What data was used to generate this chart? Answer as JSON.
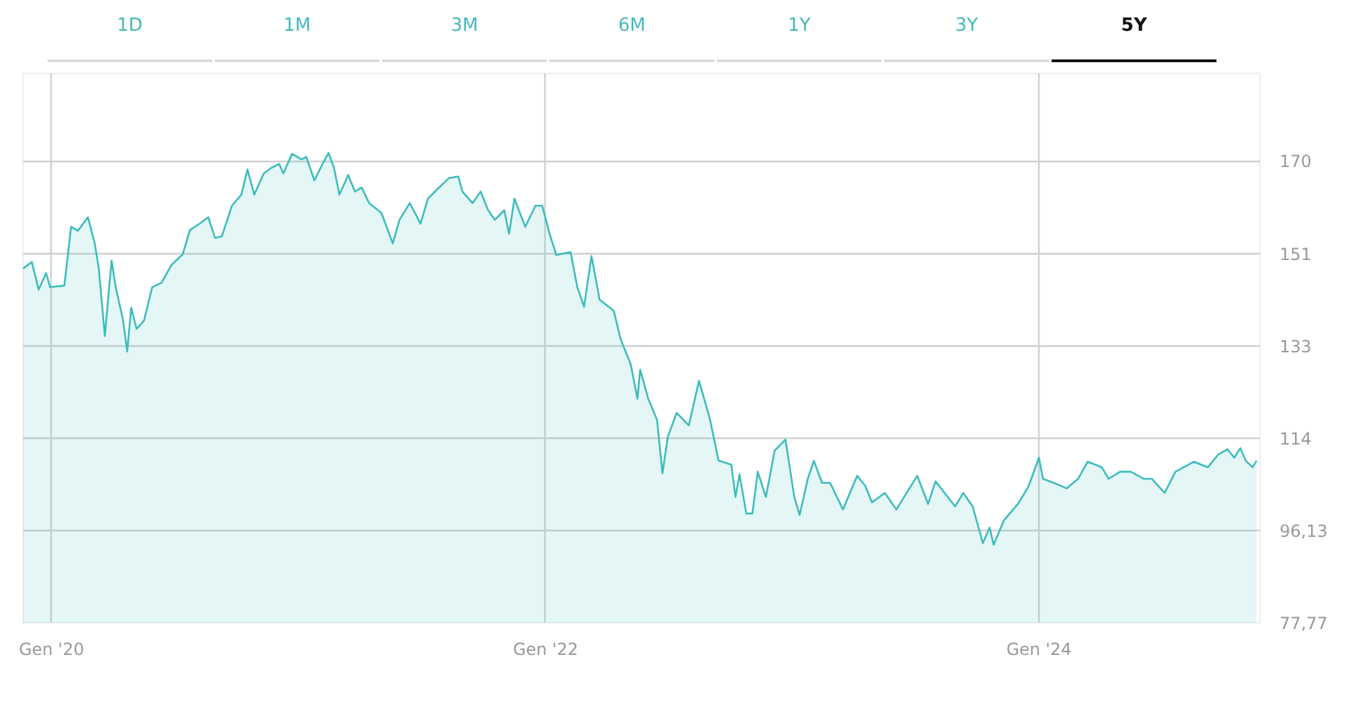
{
  "chart_data": {
    "type": "area",
    "annotations": [
      "1D",
      "1M",
      "3M",
      "6M",
      "1Y",
      "3Y",
      "5Y"
    ],
    "x": [
      "2019-11-20",
      "2019-12-03",
      "2019-12-13",
      "2019-12-24",
      "2019-12-30",
      "2020-01-20",
      "2020-01-30",
      "2020-02-09",
      "2020-02-24",
      "2020-03-05",
      "2020-03-11",
      "2020-03-20",
      "2020-03-26",
      "2020-03-30",
      "2020-04-05",
      "2020-04-16",
      "2020-04-22",
      "2020-04-28",
      "2020-05-06",
      "2020-05-17",
      "2020-05-29",
      "2020-06-12",
      "2020-06-27",
      "2020-07-13",
      "2020-07-24",
      "2020-08-09",
      "2020-08-20",
      "2020-08-30",
      "2020-09-09",
      "2020-09-24",
      "2020-10-08",
      "2020-10-17",
      "2020-10-27",
      "2020-11-10",
      "2020-11-21",
      "2020-12-03",
      "2020-12-09",
      "2020-12-22",
      "2021-01-05",
      "2021-01-12",
      "2021-01-24",
      "2021-02-05",
      "2021-02-14",
      "2021-02-22",
      "2021-03-02",
      "2021-03-15",
      "2021-03-25",
      "2021-04-04",
      "2021-04-15",
      "2021-05-03",
      "2021-05-20",
      "2021-05-30",
      "2021-06-14",
      "2021-06-24",
      "2021-06-30",
      "2021-07-11",
      "2021-07-25",
      "2021-08-11",
      "2021-08-25",
      "2021-08-31",
      "2021-09-15",
      "2021-09-27",
      "2021-10-08",
      "2021-10-18",
      "2021-11-01",
      "2021-11-08",
      "2021-11-16",
      "2021-12-02",
      "2021-12-17",
      "2021-12-27",
      "2022-01-07",
      "2022-01-17",
      "2022-02-07",
      "2022-02-17",
      "2022-02-27",
      "2022-03-10",
      "2022-03-22",
      "2022-04-12",
      "2022-04-22",
      "2022-05-07",
      "2022-05-17",
      "2022-05-21",
      "2022-06-02",
      "2022-06-15",
      "2022-06-23",
      "2022-07-01",
      "2022-07-14",
      "2022-08-01",
      "2022-08-16",
      "2022-09-01",
      "2022-09-14",
      "2022-10-03",
      "2022-10-09",
      "2022-10-15",
      "2022-10-25",
      "2022-11-03",
      "2022-11-11",
      "2022-11-23",
      "2022-12-06",
      "2022-12-22",
      "2023-01-04",
      "2023-01-12",
      "2023-01-24",
      "2023-02-02",
      "2023-02-14",
      "2023-02-26",
      "2023-03-17",
      "2023-04-07",
      "2023-04-19",
      "2023-04-29",
      "2023-05-18",
      "2023-06-04",
      "2023-07-05",
      "2023-07-21",
      "2023-08-01",
      "2023-08-30",
      "2023-09-11",
      "2023-09-25",
      "2023-10-10",
      "2023-10-20",
      "2023-10-26",
      "2023-11-10",
      "2023-12-01",
      "2023-12-17",
      "2024-01-01",
      "2024-01-07",
      "2024-01-23",
      "2024-02-11",
      "2024-02-28",
      "2024-03-13",
      "2024-04-03",
      "2024-04-13",
      "2024-04-30",
      "2024-05-16",
      "2024-06-04",
      "2024-06-16",
      "2024-07-05",
      "2024-07-21",
      "2024-08-17",
      "2024-09-07",
      "2024-09-22",
      "2024-10-06",
      "2024-10-16",
      "2024-10-25",
      "2024-11-02",
      "2024-11-12",
      "2024-11-18"
    ],
    "series": [
      {
        "color": "#3dbcbc",
        "values": [
          148.2,
          149.5,
          144.0,
          147.3,
          144.5,
          144.8,
          156.5,
          155.7,
          158.4,
          153.2,
          148.2,
          134.8,
          144.0,
          149.8,
          144.5,
          137.9,
          131.7,
          140.4,
          136.2,
          137.9,
          144.5,
          145.4,
          149.0,
          151.0,
          155.9,
          157.3,
          158.4,
          154.3,
          154.6,
          160.7,
          162.9,
          167.9,
          162.9,
          167.1,
          168.2,
          169.0,
          167.1,
          171.0,
          169.9,
          170.4,
          165.7,
          169.0,
          171.2,
          168.2,
          162.9,
          166.8,
          163.5,
          164.3,
          161.2,
          159.3,
          153.2,
          157.9,
          161.2,
          158.7,
          157.1,
          162.1,
          164.0,
          166.2,
          166.5,
          163.5,
          161.2,
          163.5,
          159.8,
          157.9,
          159.8,
          155.1,
          162.1,
          156.5,
          160.7,
          160.7,
          155.1,
          150.9,
          151.5,
          144.5,
          140.6,
          150.7,
          142.0,
          139.8,
          134.2,
          129.2,
          122.3,
          128.1,
          122.3,
          118.1,
          107.5,
          114.8,
          119.5,
          117.0,
          125.9,
          118.4,
          110.0,
          109.2,
          102.8,
          107.3,
          99.5,
          99.5,
          107.8,
          102.8,
          112.0,
          114.2,
          102.8,
          99.2,
          106.4,
          110.0,
          105.6,
          105.6,
          100.3,
          107.0,
          105.0,
          101.7,
          103.6,
          100.3,
          107.0,
          101.4,
          105.9,
          100.9,
          103.6,
          100.9,
          93.6,
          96.7,
          93.3,
          98.1,
          101.4,
          105.0,
          110.6,
          106.4,
          105.6,
          104.5,
          106.4,
          109.8,
          108.7,
          106.4,
          107.8,
          107.8,
          106.4,
          106.4,
          103.6,
          107.8,
          109.8,
          108.7,
          111.2,
          112.3,
          110.6,
          112.5,
          110.0,
          108.7,
          110.0
        ]
      }
    ],
    "xlim": [
      "2019-11-20",
      "2024-11-23"
    ],
    "xticks": [
      {
        "value": "2020-01-01",
        "label": "Gen '20"
      },
      {
        "value": "2022-01-01",
        "label": "Gen '22"
      },
      {
        "value": "2024-01-01",
        "label": "Gen '24"
      }
    ],
    "ylim": [
      77.77,
      187
    ],
    "yticks": [
      {
        "value": 77.77,
        "label": "77,77"
      },
      {
        "value": 96.13,
        "label": "96,13"
      },
      {
        "value": 114.49,
        "label": "114"
      },
      {
        "value": 132.85,
        "label": "133"
      },
      {
        "value": 151.21,
        "label": "151"
      },
      {
        "value": 169.57,
        "label": "170"
      }
    ],
    "grid": true
  }
}
